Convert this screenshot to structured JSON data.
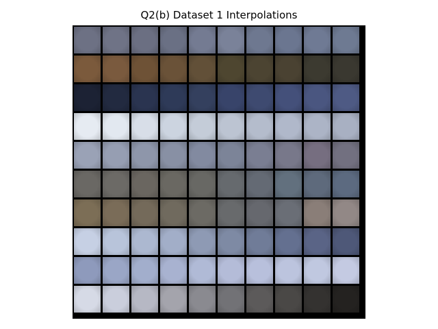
{
  "figure": {
    "title": "Q2(b) Dataset 1 Interpolations"
  },
  "image_grid": {
    "rows": 10,
    "cols": 10,
    "description_colors": {
      "frame": "#000000"
    },
    "cells": [
      [
        {
          "bg": "#6d7184",
          "fg": "#3a3f5c",
          "t": "1"
        },
        {
          "bg": "#6f7386",
          "fg": "#3c405c",
          "t": ""
        },
        {
          "bg": "#6b6f82",
          "fg": "#3c405a",
          "t": "1"
        },
        {
          "bg": "#6a7084",
          "fg": "#3c405c",
          "t": ""
        },
        {
          "bg": "#747b92",
          "fg": "#3f4564",
          "t": "2"
        },
        {
          "bg": "#7a8299",
          "fg": "#3a4266",
          "t": "1"
        },
        {
          "bg": "#6e7890",
          "fg": "#323a60",
          "t": "2"
        },
        {
          "bg": "#6b7690",
          "fg": "#2f3a62",
          "t": "1"
        },
        {
          "bg": "#6f7a94",
          "fg": "#2f3a66",
          "t": "15"
        },
        {
          "bg": "#6e7a92",
          "fg": "#30406a",
          "t": "1"
        }
      ],
      [
        {
          "bg": "#7b5a3c",
          "fg": "#5a3c22",
          "t": "1"
        },
        {
          "bg": "#7a5a3e",
          "fg": "#553a22",
          "t": "1"
        },
        {
          "bg": "#6e5236",
          "fg": "#4e3822",
          "t": "1"
        },
        {
          "bg": "#6a5238",
          "fg": "#4a3622",
          "t": "3"
        },
        {
          "bg": "#625038",
          "fg": "#463626",
          "t": "1"
        },
        {
          "bg": "#4e4630",
          "fg": "#3a3424",
          "t": ""
        },
        {
          "bg": "#4c4432",
          "fg": "#3a3426",
          "t": "1"
        },
        {
          "bg": "#4a4232",
          "fg": "#383226",
          "t": ""
        },
        {
          "bg": "#3c3a30",
          "fg": "#2c2a24",
          "t": "1"
        },
        {
          "bg": "#3a3830",
          "fg": "#2a2824",
          "t": "1"
        }
      ],
      [
        {
          "bg": "#1c2234",
          "fg": "#303c5a",
          "t": "5"
        },
        {
          "bg": "#222a40",
          "fg": "#38466a",
          "t": ""
        },
        {
          "bg": "#2a3450",
          "fg": "#40507a",
          "t": "1"
        },
        {
          "bg": "#2e3a58",
          "fg": "#4a5a86",
          "t": "15"
        },
        {
          "bg": "#34405e",
          "fg": "#4c5c88",
          "t": "1"
        },
        {
          "bg": "#38446a",
          "fg": "#56669a",
          "t": "5"
        },
        {
          "bg": "#3e4a70",
          "fg": "#5a6aa0",
          "t": "13"
        },
        {
          "bg": "#44507a",
          "fg": "#6070a6",
          "t": "1"
        },
        {
          "bg": "#4a5680",
          "fg": "#6676ac",
          "t": "13"
        },
        {
          "bg": "#4e5a84",
          "fg": "#6a7ab0",
          "t": "17"
        }
      ],
      [
        {
          "bg": "#e6ebf2",
          "fg": "#2c3474",
          "t": "0"
        },
        {
          "bg": "#e2e8f0",
          "fg": "#303878",
          "t": "0"
        },
        {
          "bg": "#d8dee8",
          "fg": "#3a4280",
          "t": "0"
        },
        {
          "bg": "#ccd4e0",
          "fg": "#465088",
          "t": "0"
        },
        {
          "bg": "#c4ccd8",
          "fg": "#545c8c",
          "t": "0"
        },
        {
          "bg": "#bcc4d2",
          "fg": "#5c6694",
          "t": "0"
        },
        {
          "bg": "#b4bccc",
          "fg": "#646c98",
          "t": "0"
        },
        {
          "bg": "#b0b8ca",
          "fg": "#6a729c",
          "t": "0"
        },
        {
          "bg": "#acb4c6",
          "fg": "#6e76a0",
          "t": "1"
        },
        {
          "bg": "#a8b0c2",
          "fg": "#7078a2",
          "t": "1"
        }
      ],
      [
        {
          "bg": "#9aa2b6",
          "fg": "#4c5478",
          "t": "3"
        },
        {
          "bg": "#969eb2",
          "fg": "#4a5276",
          "t": "3"
        },
        {
          "bg": "#8e96aa",
          "fg": "#4a5070",
          "t": "3"
        },
        {
          "bg": "#8890a4",
          "fg": "#4a4e6c",
          "t": "13"
        },
        {
          "bg": "#828aa0",
          "fg": "#4c4e6a",
          "t": "13"
        },
        {
          "bg": "#7c8498",
          "fg": "#4c4c66",
          "t": "13"
        },
        {
          "bg": "#7a7e92",
          "fg": "#4e4a62",
          "t": "12"
        },
        {
          "bg": "#78788a",
          "fg": "#523e4e",
          "t": "13"
        },
        {
          "bg": "#766e80",
          "fg": "#563846",
          "t": "17"
        },
        {
          "bg": "#727080",
          "fg": "#5a3440",
          "t": "17"
        }
      ],
      [
        {
          "bg": "#6a6864",
          "fg": "#2e2c2c",
          "t": "2"
        },
        {
          "bg": "#6c6a66",
          "fg": "#302e2e",
          "t": "1"
        },
        {
          "bg": "#6a6660",
          "fg": "#2e2a28",
          "t": "2"
        },
        {
          "bg": "#6a6862",
          "fg": "#32302c",
          "t": "2"
        },
        {
          "bg": "#686864",
          "fg": "#34343a",
          "t": "2"
        },
        {
          "bg": "#666a6e",
          "fg": "#363a48",
          "t": "2"
        },
        {
          "bg": "#646a74",
          "fg": "#363e52",
          "t": "1"
        },
        {
          "bg": "#62707e",
          "fg": "#3a4458",
          "t": "2"
        },
        {
          "bg": "#5e6a7c",
          "fg": "#38445a",
          "t": "1"
        },
        {
          "bg": "#5c6a80",
          "fg": "#38465e",
          "t": "2"
        }
      ],
      [
        {
          "bg": "#7c6e56",
          "fg": "#54462e",
          "t": "1"
        },
        {
          "bg": "#7a6c58",
          "fg": "#524430",
          "t": "5"
        },
        {
          "bg": "#746a5a",
          "fg": "#4e4434",
          "t": "1"
        },
        {
          "bg": "#706a5e",
          "fg": "#4a4438",
          "t": "5"
        },
        {
          "bg": "#6c6a64",
          "fg": "#46443e",
          "t": "3"
        },
        {
          "bg": "#686a6c",
          "fg": "#424448",
          "t": "3"
        },
        {
          "bg": "#66686e",
          "fg": "#404250",
          "t": "3"
        },
        {
          "bg": "#6a6e76",
          "fg": "#3c3e56",
          "t": "3"
        },
        {
          "bg": "#8a7e78",
          "fg": "#3a2e3c",
          "t": "3"
        },
        {
          "bg": "#928886",
          "fg": "#3e3244",
          "t": "3"
        }
      ],
      [
        {
          "bg": "#c6d0e4",
          "fg": "#6a78a8",
          "t": "1"
        },
        {
          "bg": "#b8c4da",
          "fg": "#6272a2",
          "t": "14"
        },
        {
          "bg": "#acb8d0",
          "fg": "#5a6a9a",
          "t": "14"
        },
        {
          "bg": "#a2aec8",
          "fg": "#566694",
          "t": "14"
        },
        {
          "bg": "#8e9ab4",
          "fg": "#4e5e88",
          "t": "1"
        },
        {
          "bg": "#7e8aa4",
          "fg": "#4a5880",
          "t": "1"
        },
        {
          "bg": "#707c98",
          "fg": "#46547a",
          "t": "1"
        },
        {
          "bg": "#647090",
          "fg": "#404e74",
          "t": "1"
        },
        {
          "bg": "#5a6486",
          "fg": "#3a466c",
          "t": "1"
        },
        {
          "bg": "#4e5878",
          "fg": "#344062",
          "t": "1"
        }
      ],
      [
        {
          "bg": "#8e9abc",
          "fg": "#3c4a86",
          "t": "12"
        },
        {
          "bg": "#9aa6c6",
          "fg": "#3e4c8a",
          "t": "12"
        },
        {
          "bg": "#a2aecc",
          "fg": "#3e4c8c",
          "t": "12"
        },
        {
          "bg": "#a8b2d0",
          "fg": "#3e4a8c",
          "t": "12"
        },
        {
          "bg": "#b0bad6",
          "fg": "#3e488c",
          "t": "12"
        },
        {
          "bg": "#b4bcd8",
          "fg": "#3c468c",
          "t": "12"
        },
        {
          "bg": "#b8c0dc",
          "fg": "#3a448c",
          "t": "12"
        },
        {
          "bg": "#bcc4de",
          "fg": "#3a428a",
          "t": "12"
        },
        {
          "bg": "#c0c8e0",
          "fg": "#3a4288",
          "t": "12"
        },
        {
          "bg": "#c4cae2",
          "fg": "#3a4086",
          "t": "1"
        }
      ],
      [
        {
          "bg": "#d6dae6",
          "fg": "#2a2e6a",
          "t": "3"
        },
        {
          "bg": "#cacedc",
          "fg": "#2e326a",
          "t": "3"
        },
        {
          "bg": "#b6b8c4",
          "fg": "#3a3c5a",
          "t": "3"
        },
        {
          "bg": "#a4a4ac",
          "fg": "#404050",
          "t": "3"
        },
        {
          "bg": "#8a8a90",
          "fg": "#3e3e48",
          "t": "15"
        },
        {
          "bg": "#727276",
          "fg": "#3a3a40",
          "t": "17"
        },
        {
          "bg": "#5c5a5a",
          "fg": "#bab6b0",
          "t": "1"
        },
        {
          "bg": "#4a4846",
          "fg": "#b0aca6",
          "t": "1"
        },
        {
          "bg": "#343230",
          "fg": "#8a8680",
          "t": "1"
        },
        {
          "bg": "#242220",
          "fg": "#5e5a56",
          "t": "1"
        }
      ]
    ]
  }
}
